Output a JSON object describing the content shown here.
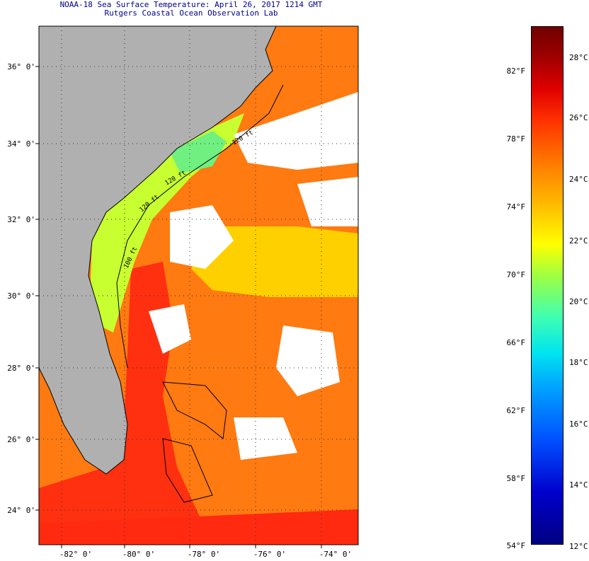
{
  "header": {
    "title_line1": "NOAA-18 Sea Surface Temperature:  April 26, 2017 1214 GMT",
    "title_line2": "Rutgers Coastal Ocean Observation Lab"
  },
  "map": {
    "lat_labels": [
      "36° 0'",
      "34° 0'",
      "32° 0'",
      "30° 0'",
      "28° 0'",
      "26° 0'",
      "24° 0'"
    ],
    "lon_labels": [
      "-82° 0'",
      "-80° 0'",
      "-78° 0'",
      "-76° 0'",
      "-74° 0'"
    ],
    "contour_labels": [
      "120 ft",
      "120 ft",
      "120 ft",
      "100 ft"
    ],
    "colors": {
      "land": "#b0b0b0",
      "no_data": "#ffffff",
      "coastline": "#000000"
    }
  },
  "colorbar": {
    "fahrenheit_labels": [
      "82°F",
      "78°F",
      "74°F",
      "70°F",
      "66°F",
      "62°F",
      "58°F",
      "54°F"
    ],
    "celsius_labels": [
      "28°C",
      "26°C",
      "24°C",
      "22°C",
      "20°C",
      "18°C",
      "16°C",
      "14°C",
      "12°C"
    ],
    "colors_low_to_high": [
      "#000080",
      "#0000cd",
      "#0050ff",
      "#00a0ff",
      "#00e5f0",
      "#40ffb0",
      "#a0ff40",
      "#ffff00",
      "#ffc000",
      "#ff8000",
      "#ff3000",
      "#e00000",
      "#a00000",
      "#700000"
    ]
  }
}
